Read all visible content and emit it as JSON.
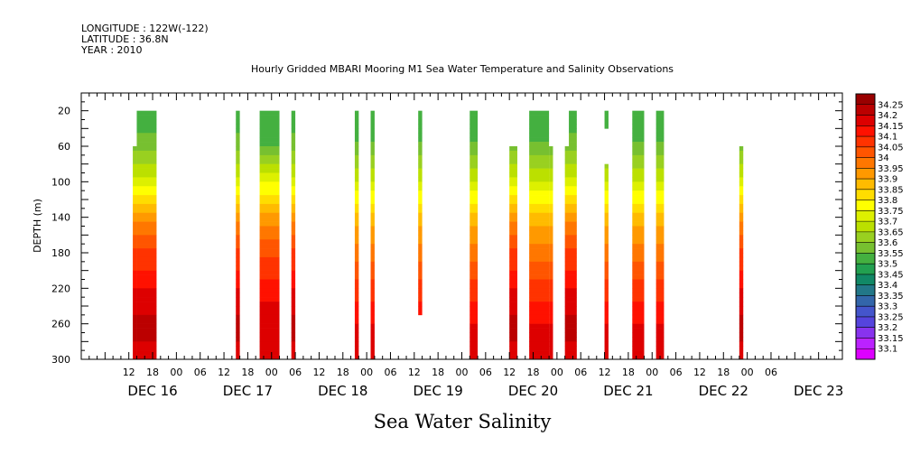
{
  "header": {
    "longitude": "LONGITUDE : 122W(-122)",
    "latitude": "LATITUDE : 36.8N",
    "year": "YEAR : 2010"
  },
  "chart_data": {
    "type": "heatmap",
    "title": "Hourly Gridded MBARI Mooring M1 Sea Water Temperature and Salinity Observations",
    "xlabel": "Sea Water Salinity",
    "ylabel": "DEPTH (m)",
    "x_range_hours": [
      0,
      192
    ],
    "x_origin": "DEC 16 00",
    "ylim": [
      300,
      0
    ],
    "yticks": [
      20,
      60,
      100,
      140,
      180,
      220,
      260,
      300
    ],
    "hour_tick_labels": [
      {
        "h": 12,
        "label": "12"
      },
      {
        "h": 18,
        "label": "18"
      },
      {
        "h": 24,
        "label": "00"
      },
      {
        "h": 30,
        "label": "06"
      },
      {
        "h": 36,
        "label": "12"
      },
      {
        "h": 42,
        "label": "18"
      },
      {
        "h": 48,
        "label": "00"
      },
      {
        "h": 54,
        "label": "06"
      },
      {
        "h": 60,
        "label": "12"
      },
      {
        "h": 66,
        "label": "18"
      },
      {
        "h": 72,
        "label": "00"
      },
      {
        "h": 78,
        "label": "06"
      },
      {
        "h": 84,
        "label": "12"
      },
      {
        "h": 90,
        "label": "18"
      },
      {
        "h": 96,
        "label": "00"
      },
      {
        "h": 102,
        "label": "06"
      },
      {
        "h": 108,
        "label": "12"
      },
      {
        "h": 114,
        "label": "18"
      },
      {
        "h": 120,
        "label": "00"
      },
      {
        "h": 126,
        "label": "06"
      },
      {
        "h": 132,
        "label": "12"
      },
      {
        "h": 138,
        "label": "18"
      },
      {
        "h": 144,
        "label": "00"
      },
      {
        "h": 150,
        "label": "06"
      },
      {
        "h": 156,
        "label": "12"
      },
      {
        "h": 162,
        "label": "18"
      },
      {
        "h": 168,
        "label": "00"
      },
      {
        "h": 174,
        "label": "06"
      }
    ],
    "day_labels": [
      {
        "h": 18,
        "label": "DEC 16"
      },
      {
        "h": 42,
        "label": "DEC 17"
      },
      {
        "h": 66,
        "label": "DEC 18"
      },
      {
        "h": 90,
        "label": "DEC 19"
      },
      {
        "h": 114,
        "label": "DEC 20"
      },
      {
        "h": 138,
        "label": "DEC 21"
      },
      {
        "h": 162,
        "label": "DEC 22"
      },
      {
        "h": 186,
        "label": "DEC 23"
      }
    ],
    "colorbar": {
      "labels": [
        "34.25",
        "34.2",
        "34.15",
        "34.1",
        "34.05",
        "34",
        "33.95",
        "33.9",
        "33.85",
        "33.8",
        "33.75",
        "33.7",
        "33.65",
        "33.6",
        "33.55",
        "33.5",
        "33.45",
        "33.4",
        "33.35",
        "33.3",
        "33.25",
        "33.2",
        "33.15",
        "33.1"
      ],
      "colors": [
        "#990000",
        "#bb0000",
        "#dd0000",
        "#ff1100",
        "#ff3300",
        "#ff5500",
        "#ff7700",
        "#ff9900",
        "#ffbb00",
        "#ffdd00",
        "#ffff00",
        "#ddf000",
        "#bbe000",
        "#99d020",
        "#77c030",
        "#44b040",
        "#22a050",
        "#118866",
        "#227788",
        "#3366aa",
        "#4455cc",
        "#5544dd",
        "#8833ee",
        "#bb22ff",
        "#dd00ff"
      ]
    },
    "profiles": {
      "A": [
        [
          20,
          33.5
        ],
        [
          60,
          33.58
        ],
        [
          100,
          33.72
        ],
        [
          140,
          33.93
        ],
        [
          180,
          34.06
        ],
        [
          220,
          34.15
        ],
        [
          260,
          34.22
        ],
        [
          300,
          34.18
        ]
      ],
      "B": [
        [
          20,
          33.5
        ],
        [
          60,
          33.55
        ],
        [
          100,
          33.74
        ],
        [
          140,
          33.92
        ],
        [
          180,
          34.04
        ],
        [
          220,
          34.12
        ],
        [
          260,
          34.19
        ],
        [
          300,
          34.18
        ]
      ],
      "C": [
        [
          20,
          33.5
        ],
        [
          60,
          33.56
        ],
        [
          100,
          33.7
        ],
        [
          140,
          33.87
        ],
        [
          180,
          33.97
        ],
        [
          220,
          34.07
        ],
        [
          260,
          34.15
        ],
        [
          300,
          34.16
        ]
      ]
    },
    "columns": [
      {
        "x0": 13,
        "x1": 14,
        "top": 60,
        "bottom": 300,
        "profile": "A"
      },
      {
        "x0": 14,
        "x1": 19,
        "top": 20,
        "bottom": 300,
        "profile": "A"
      },
      {
        "x0": 39,
        "x1": 40,
        "top": 20,
        "bottom": 300,
        "profile": "A"
      },
      {
        "x0": 45,
        "x1": 50,
        "top": 20,
        "bottom": 300,
        "profile": "B"
      },
      {
        "x0": 53,
        "x1": 54,
        "top": 20,
        "bottom": 300,
        "profile": "A"
      },
      {
        "x0": 69,
        "x1": 70,
        "top": 20,
        "bottom": 300,
        "profile": "C"
      },
      {
        "x0": 73,
        "x1": 74,
        "top": 20,
        "bottom": 300,
        "profile": "C"
      },
      {
        "x0": 85,
        "x1": 86,
        "top": 20,
        "bottom": 250,
        "profile": "C"
      },
      {
        "x0": 98,
        "x1": 100,
        "top": 20,
        "bottom": 300,
        "profile": "C"
      },
      {
        "x0": 108,
        "x1": 110,
        "top": 60,
        "bottom": 300,
        "profile": "A"
      },
      {
        "x0": 113,
        "x1": 118,
        "top": 20,
        "bottom": 300,
        "profile": "C"
      },
      {
        "x0": 118,
        "x1": 119,
        "top": 60,
        "bottom": 300,
        "profile": "C"
      },
      {
        "x0": 122,
        "x1": 125,
        "top": 60,
        "bottom": 300,
        "profile": "A"
      },
      {
        "x0": 123,
        "x1": 125,
        "top": 20,
        "bottom": 60,
        "profile": "A"
      },
      {
        "x0": 132,
        "x1": 133,
        "top": 20,
        "bottom": 40,
        "profile": "C"
      },
      {
        "x0": 132,
        "x1": 133,
        "top": 80,
        "bottom": 300,
        "profile": "C"
      },
      {
        "x0": 139,
        "x1": 142,
        "top": 20,
        "bottom": 300,
        "profile": "C"
      },
      {
        "x0": 145,
        "x1": 147,
        "top": 20,
        "bottom": 300,
        "profile": "C"
      },
      {
        "x0": 166,
        "x1": 167,
        "top": 60,
        "bottom": 300,
        "profile": "A"
      }
    ]
  }
}
